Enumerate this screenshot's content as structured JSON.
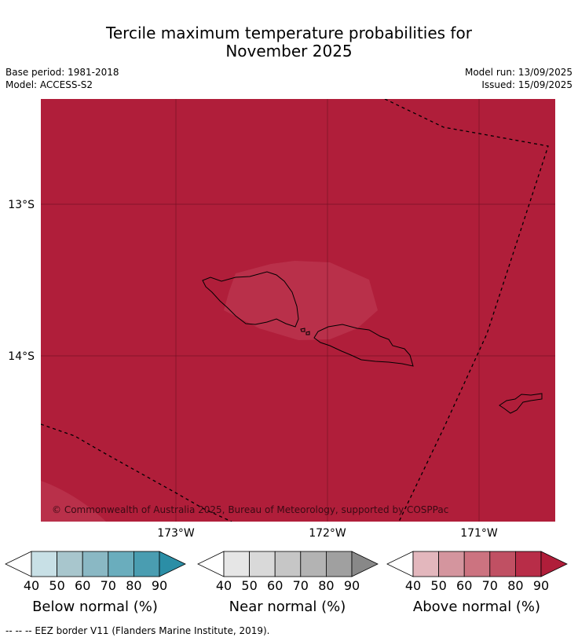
{
  "title": {
    "line1": "Tercile maximum temperature probabilities for",
    "line2": "November 2025"
  },
  "meta": {
    "base_period": "Base period: 1981-2018",
    "model": "Model: ACCESS-S2",
    "model_run": "Model run: 13/09/2025",
    "issued": "Issued: 15/09/2025"
  },
  "map": {
    "lat_labels": [
      "13°S",
      "14°S"
    ],
    "lon_labels": [
      "173°W",
      "172°W",
      "171°W"
    ],
    "copyright": "© Commonwealth of Australia 2025, Bureau of Meteorology, supported by COSPPac",
    "fill_color": "#b01e3a",
    "highlight_color": "#b9304a"
  },
  "legends": [
    {
      "name": "below",
      "title": "Below normal (%)",
      "ticks": [
        "40",
        "50",
        "60",
        "70",
        "80",
        "90"
      ],
      "colors": [
        "#ffffff",
        "#c8e0e6",
        "#a8c6cd",
        "#8ab8c4",
        "#6aadbd",
        "#4a9db1",
        "#2b8ea6"
      ]
    },
    {
      "name": "near",
      "title": "Near normal (%)",
      "ticks": [
        "40",
        "50",
        "60",
        "70",
        "80",
        "90"
      ],
      "colors": [
        "#ffffff",
        "#e6e6e6",
        "#d9d9d9",
        "#c6c6c6",
        "#b3b3b3",
        "#a0a0a0",
        "#888888"
      ]
    },
    {
      "name": "above",
      "title": "Above normal (%)",
      "ticks": [
        "40",
        "50",
        "60",
        "70",
        "80",
        "90"
      ],
      "colors": [
        "#ffffff",
        "#e3b7bd",
        "#d4959e",
        "#cc7380",
        "#c05063",
        "#b82d48",
        "#b01e3a"
      ]
    }
  ],
  "footnote": "-- -- -- EEZ border V11 (Flanders Marine Institute, 2019)."
}
